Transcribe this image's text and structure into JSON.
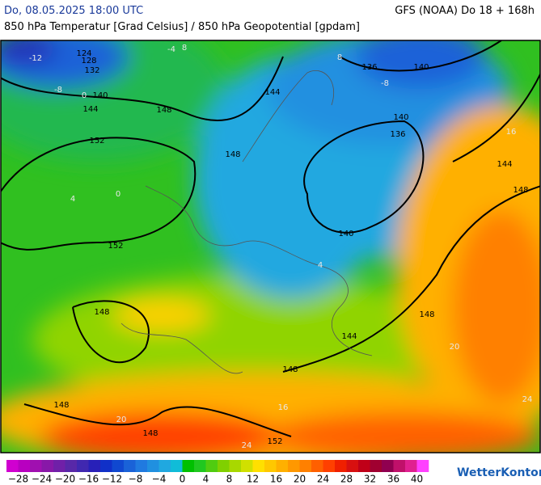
{
  "header": {
    "datetime": "Do, 08.05.2025 18:00 UTC",
    "model": "GFS (NOAA) Do 18 + 168h",
    "subtitle": "850 hPa Temperatur [Grad Celsius] / 850 hPa Geopotential [gpdam]"
  },
  "map": {
    "contour_labels": [
      "124",
      "128",
      "132",
      "140",
      "144",
      "148",
      "152",
      "148",
      "144",
      "136",
      "140",
      "140",
      "136",
      "140",
      "144",
      "148",
      "152",
      "148",
      "148",
      "144",
      "148",
      "148",
      "148",
      "152"
    ],
    "isotherm_labels": [
      "-12",
      "-8",
      "-4",
      "0",
      "8",
      "-8",
      "16",
      "20",
      "24",
      "24",
      "20",
      "16",
      "4",
      "0",
      "4",
      "8"
    ]
  },
  "colorbar": {
    "range": [
      -30,
      42
    ],
    "colors": [
      "#d000d0",
      "#b800c0",
      "#a010b0",
      "#8818a8",
      "#7020a8",
      "#5828a8",
      "#4028b0",
      "#2820b8",
      "#1030c8",
      "#1048d0",
      "#1a62d8",
      "#207ae0",
      "#2090e0",
      "#20a8e0",
      "#10bcd8",
      "#00c000",
      "#20c820",
      "#50cc10",
      "#80d000",
      "#a8d800",
      "#d0e000",
      "#ffe000",
      "#ffc800",
      "#ffb000",
      "#ff9800",
      "#ff8000",
      "#ff6000",
      "#ff4000",
      "#f02000",
      "#d81010",
      "#c00018",
      "#a00030",
      "#900050",
      "#c0106a",
      "#e02090",
      "#ff40ff"
    ],
    "ticks": [
      {
        "value": -28,
        "label": "−28"
      },
      {
        "value": -24,
        "label": "−24"
      },
      {
        "value": -20,
        "label": "−20"
      },
      {
        "value": -16,
        "label": "−16"
      },
      {
        "value": -12,
        "label": "−12"
      },
      {
        "value": -8,
        "label": "−8"
      },
      {
        "value": -4,
        "label": "−4"
      },
      0,
      4,
      8,
      12,
      16,
      20,
      24,
      28,
      32,
      36,
      40
    ]
  },
  "brand": "WetterKontor"
}
